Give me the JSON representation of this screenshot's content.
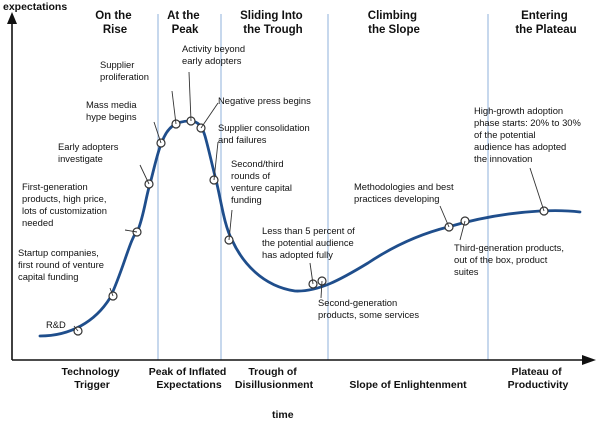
{
  "axes": {
    "y_label": "expectations",
    "x_label": "time"
  },
  "phases_top": [
    {
      "line1": "On the",
      "line2": "Rise"
    },
    {
      "line1": "At the",
      "line2": "Peak"
    },
    {
      "line1": "Sliding Into",
      "line2": "the Trough"
    },
    {
      "line1": "Climbing",
      "line2": "the Slope"
    },
    {
      "line1": "Entering",
      "line2": "the Plateau"
    }
  ],
  "phases_bottom": [
    {
      "line1": "Technology",
      "line2": "Trigger"
    },
    {
      "line1": "Peak of Inflated",
      "line2": "Expectations"
    },
    {
      "line1": "Trough of",
      "line2": "Disillusionment"
    },
    {
      "line1": "Slope of Enlightenment",
      "line2": ""
    },
    {
      "line1": "Plateau of",
      "line2": "Productivity"
    }
  ],
  "annotations": [
    {
      "lines": [
        "R&D"
      ]
    },
    {
      "lines": [
        "Startup companies,",
        "first round of venture",
        "capital funding"
      ]
    },
    {
      "lines": [
        "First-generation",
        "products, high price,",
        "lots of customization",
        "needed"
      ]
    },
    {
      "lines": [
        "Early adopters",
        "investigate"
      ]
    },
    {
      "lines": [
        "Mass media",
        "hype begins"
      ]
    },
    {
      "lines": [
        "Supplier",
        "proliferation"
      ]
    },
    {
      "lines": [
        "Activity beyond",
        "early adopters"
      ]
    },
    {
      "lines": [
        "Negative press begins"
      ]
    },
    {
      "lines": [
        "Supplier consolidation",
        "and failures"
      ]
    },
    {
      "lines": [
        "Second/third",
        "rounds of",
        "venture capital",
        "funding"
      ]
    },
    {
      "lines": [
        "Less than 5 percent of",
        "the potential audience",
        "has adopted fully"
      ]
    },
    {
      "lines": [
        "Second-generation",
        "products, some services"
      ]
    },
    {
      "lines": [
        "Methodologies and best",
        "practices developing"
      ]
    },
    {
      "lines": [
        "Third-generation products,",
        "out of the box, product",
        "suites"
      ]
    },
    {
      "lines": [
        "High-growth adoption",
        "phase starts: 20% to 30%",
        "of the potential",
        "audience has adopted",
        "the innovation"
      ]
    }
  ],
  "colors": {
    "curve": "#1f4e8c",
    "phase_divider": "#a9c3e3",
    "axis": "#111111",
    "marker_fill": "#ffffff",
    "marker_stroke": "#333333"
  }
}
